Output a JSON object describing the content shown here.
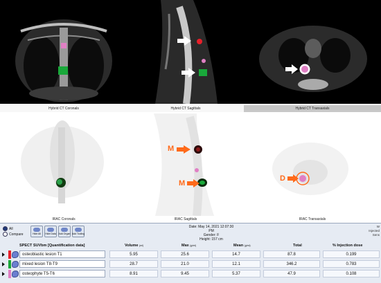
{
  "views": {
    "ct_coronal": "Hybrid CT Coronals",
    "ct_sagittal": "Hybrid CT Sagittals",
    "ct_transaxial": "Hybrid CT Transaxials",
    "nm_coronal": "IRAC Coronals",
    "nm_sagittal": "IRAC Sagittals",
    "nm_transaxial": "IRAC Transaxials"
  },
  "markers": {
    "m_upper": "M",
    "m_lower": "M",
    "d": "D"
  },
  "controls": {
    "all": "All",
    "compare": "Compare",
    "hide_all": "Hide All",
    "hide_data": "Hide Data",
    "add_organ": "Add Organ",
    "add_tooling": "Add Tooling"
  },
  "study": {
    "date": "Date: May 14, 2021 12:07:30 PM",
    "gender": "Gender: F",
    "height": "Height: 157 cm",
    "right1": "W",
    "right2": "Injected",
    "right3": "Sens"
  },
  "table": {
    "title": "SPECT SUVbm [Quantification data]",
    "headers": {
      "volume": "Volume",
      "volume_unit": "(ml)",
      "max": "Max",
      "max_unit": "(g/ml)",
      "mean": "Mean",
      "mean_unit": "(g/ml)",
      "total": "Total",
      "injection": "% Injection dose"
    },
    "rows": [
      {
        "name": "osteoblastic lesion T1",
        "volume": "5.95",
        "max": "25.6",
        "mean": "14.7",
        "total": "87.8",
        "injection": "0.199",
        "color": "#e8202a"
      },
      {
        "name": "mixed lesion T8-T9",
        "volume": "28.7",
        "max": "21.0",
        "mean": "12.1",
        "total": "346.2",
        "injection": "0.783",
        "color": "#19a83a"
      },
      {
        "name": "osteophyte T5-T6",
        "volume": "8.91",
        "max": "9.45",
        "mean": "5.37",
        "total": "47.9",
        "injection": "0.108",
        "color": "#e07fc4"
      }
    ]
  },
  "colors": {
    "lesion_red": "#e8202a",
    "lesion_green": "#19a83a",
    "lesion_pink": "#e07fc4",
    "marker_orange": "#ff6a1a"
  }
}
